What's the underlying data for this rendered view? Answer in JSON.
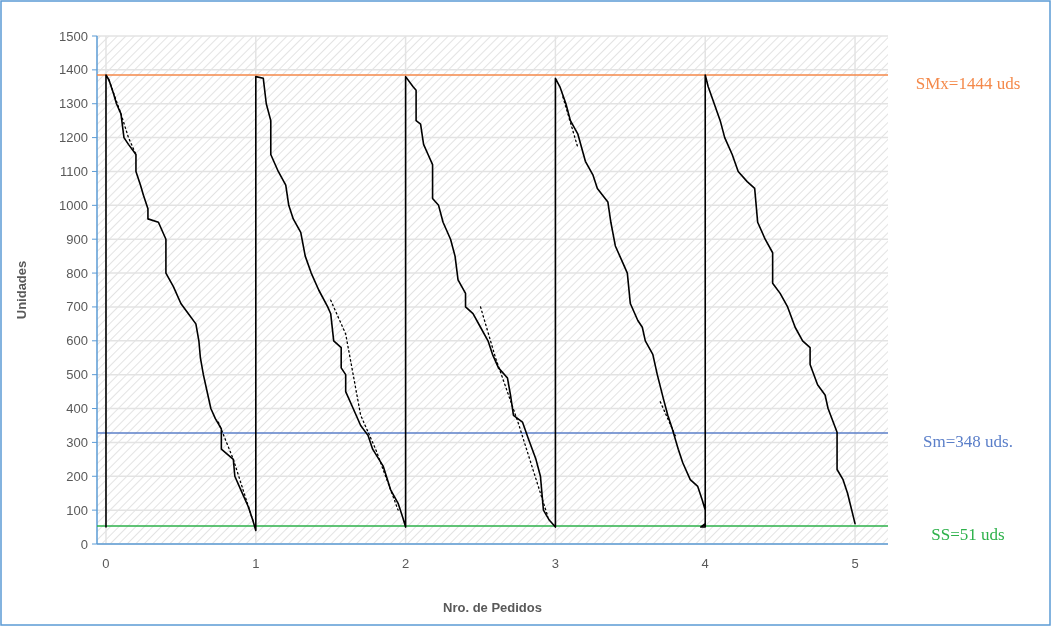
{
  "chart_data": {
    "type": "line",
    "xlabel": "Nro. de Pedidos",
    "ylabel": "Unidades",
    "xlim": [
      -0.06,
      5.22
    ],
    "ylim": [
      0,
      1500
    ],
    "xticks": [
      0,
      1,
      2,
      3,
      4,
      5
    ],
    "yticks": [
      0,
      100,
      200,
      300,
      400,
      500,
      600,
      700,
      800,
      900,
      1000,
      1100,
      1200,
      1300,
      1400,
      1500
    ],
    "grid": true,
    "marker": "none",
    "series": [
      {
        "color": "#000000",
        "line_style": "solid",
        "x": [
          0,
          0,
          0.02,
          0.05,
          0.07,
          0.1,
          0.12,
          0.15,
          0.2,
          0.2,
          0.23,
          0.25,
          0.28,
          0.28,
          0.35,
          0.4,
          0.4,
          0.45,
          0.5,
          0.55,
          0.6,
          0.62,
          0.63,
          0.65,
          0.68,
          0.7,
          0.73,
          0.77,
          0.77,
          0.85,
          0.86,
          0.9,
          0.95,
          0.98,
          1,
          1,
          1.05,
          1.07,
          1.1,
          1.1,
          1.15,
          1.2,
          1.22,
          1.25,
          1.3,
          1.33,
          1.37,
          1.42,
          1.48,
          1.5,
          1.52,
          1.57,
          1.57,
          1.6,
          1.6,
          1.65,
          1.7,
          1.75,
          1.78,
          1.85,
          1.9,
          1.95,
          1.98,
          2,
          2,
          2.05,
          2.07,
          2.07,
          2.1,
          2.12,
          2.15,
          2.18,
          2.18,
          2.22,
          2.25,
          2.3,
          2.33,
          2.35,
          2.4,
          2.4,
          2.45,
          2.5,
          2.55,
          2.58,
          2.62,
          2.68,
          2.7,
          2.72,
          2.78,
          2.82,
          2.87,
          2.9,
          2.92,
          2.96,
          3,
          3,
          3.03,
          3.07,
          3.1,
          3.15,
          3.2,
          3.25,
          3.28,
          3.35,
          3.37,
          3.4,
          3.45,
          3.48,
          3.5,
          3.55,
          3.58,
          3.6,
          3.65,
          3.68,
          3.72,
          3.75,
          3.78,
          3.82,
          3.85,
          3.9,
          3.95,
          3.98,
          4,
          4,
          3.97,
          4,
          4,
          4.02,
          4.06,
          4.1,
          4.13,
          4.18,
          4.22,
          4.28,
          4.33,
          4.35,
          4.4,
          4.45,
          4.45,
          4.5,
          4.55,
          4.6,
          4.65,
          4.7,
          4.7,
          4.75,
          4.8,
          4.82,
          4.88,
          4.88,
          4.92,
          4.95,
          5
        ],
        "values": [
          50,
          1385,
          1370,
          1330,
          1300,
          1270,
          1200,
          1180,
          1150,
          1100,
          1060,
          1030,
          990,
          960,
          950,
          900,
          800,
          760,
          710,
          680,
          650,
          600,
          550,
          500,
          440,
          400,
          370,
          340,
          280,
          250,
          200,
          160,
          110,
          70,
          40,
          1380,
          1375,
          1300,
          1250,
          1150,
          1100,
          1060,
          1000,
          960,
          920,
          850,
          800,
          750,
          700,
          680,
          600,
          580,
          520,
          500,
          450,
          400,
          350,
          320,
          280,
          230,
          160,
          120,
          80,
          50,
          1380,
          1350,
          1340,
          1250,
          1240,
          1180,
          1150,
          1120,
          1020,
          1000,
          950,
          900,
          850,
          780,
          740,
          700,
          680,
          640,
          600,
          560,
          520,
          490,
          440,
          380,
          360,
          310,
          250,
          200,
          100,
          70,
          50,
          1375,
          1350,
          1300,
          1250,
          1210,
          1130,
          1090,
          1050,
          1010,
          950,
          880,
          830,
          800,
          710,
          660,
          640,
          600,
          560,
          500,
          430,
          380,
          340,
          280,
          240,
          190,
          170,
          130,
          100,
          60,
          50,
          50,
          1385,
          1350,
          1300,
          1250,
          1200,
          1150,
          1100,
          1070,
          1050,
          950,
          900,
          860,
          770,
          740,
          700,
          640,
          600,
          580,
          530,
          470,
          440,
          400,
          330,
          220,
          190,
          150,
          60
        ]
      },
      {
        "color": "#000000",
        "line_style": "dotted",
        "x": [
          0.02,
          0.1,
          0.15,
          0.2,
          null,
          0.75,
          0.85,
          0.98,
          null,
          1.5,
          1.6,
          1.7,
          1.8,
          1.95,
          null,
          2.5,
          2.6,
          2.75,
          2.95,
          null,
          3.05,
          3.15,
          null,
          3.7,
          3.8
        ],
        "values": [
          1370,
          1270,
          1200,
          1150,
          null,
          360,
          250,
          70,
          null,
          720,
          620,
          380,
          280,
          100,
          null,
          700,
          550,
          360,
          80,
          null,
          1320,
          1170,
          null,
          420,
          320
        ]
      }
    ],
    "ref_lines": [
      {
        "axis": "y",
        "value": 1385,
        "color": "#f4894a"
      },
      {
        "axis": "y",
        "value": 328,
        "color": "#5b7fc9"
      },
      {
        "axis": "y",
        "value": 53,
        "color": "#2db14a"
      }
    ],
    "annotations": [
      "SMx=1444 uds",
      "Sm=348 uds.",
      "SS=51 uds"
    ]
  }
}
